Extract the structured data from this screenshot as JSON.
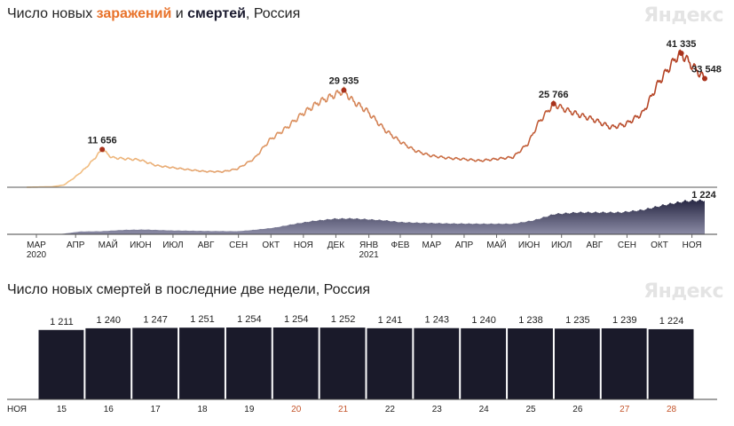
{
  "chart_data": [
    {
      "type": "line",
      "title_parts": {
        "prefix": "Число новых ",
        "infections": "заражений",
        "middle": " и ",
        "deaths": "смертей",
        "suffix": ", Россия"
      },
      "logo": "Яндекс",
      "months": [
        {
          "label": "МАР",
          "sub": "2020"
        },
        {
          "label": "АПР"
        },
        {
          "label": "МАЙ"
        },
        {
          "label": "ИЮН"
        },
        {
          "label": "ИЮЛ"
        },
        {
          "label": "АВГ"
        },
        {
          "label": "СЕН"
        },
        {
          "label": "ОКТ"
        },
        {
          "label": "НОЯ"
        },
        {
          "label": "ДЕК"
        },
        {
          "label": "ЯНВ",
          "sub": "2021"
        },
        {
          "label": "ФЕВ"
        },
        {
          "label": "МАР"
        },
        {
          "label": "АПР"
        },
        {
          "label": "МАЙ"
        },
        {
          "label": "ИЮН"
        },
        {
          "label": "ИЮЛ"
        },
        {
          "label": "АВГ"
        },
        {
          "label": "СЕН"
        },
        {
          "label": "ОКТ"
        },
        {
          "label": "НОЯ"
        }
      ],
      "series": [
        {
          "name": "заражений",
          "color_start": "#f7c98a",
          "color_end": "#b03a1e",
          "points": [
            [
              "2020-03-01",
              0
            ],
            [
              "2020-03-25",
              150
            ],
            [
              "2020-04-05",
              700
            ],
            [
              "2020-04-15",
              3000
            ],
            [
              "2020-04-25",
              5800
            ],
            [
              "2020-05-01",
              7900
            ],
            [
              "2020-05-11",
              11656
            ],
            [
              "2020-05-20",
              9200
            ],
            [
              "2020-06-01",
              8800
            ],
            [
              "2020-06-15",
              8500
            ],
            [
              "2020-07-01",
              6700
            ],
            [
              "2020-07-15",
              6100
            ],
            [
              "2020-08-01",
              5400
            ],
            [
              "2020-08-15",
              4900
            ],
            [
              "2020-09-01",
              4800
            ],
            [
              "2020-09-15",
              5700
            ],
            [
              "2020-10-01",
              8900
            ],
            [
              "2020-10-15",
              14500
            ],
            [
              "2020-11-01",
              18600
            ],
            [
              "2020-11-15",
              22700
            ],
            [
              "2020-12-01",
              26400
            ],
            [
              "2020-12-15",
              28500
            ],
            [
              "2020-12-24",
              29935
            ],
            [
              "2021-01-01",
              26800
            ],
            [
              "2021-01-15",
              23500
            ],
            [
              "2021-02-01",
              17600
            ],
            [
              "2021-02-15",
              14100
            ],
            [
              "2021-03-01",
              11300
            ],
            [
              "2021-03-15",
              9800
            ],
            [
              "2021-04-01",
              9000
            ],
            [
              "2021-04-15",
              8700
            ],
            [
              "2021-05-01",
              8200
            ],
            [
              "2021-05-15",
              8700
            ],
            [
              "2021-06-01",
              9300
            ],
            [
              "2021-06-15",
              13500
            ],
            [
              "2021-06-25",
              20000
            ],
            [
              "2021-07-09",
              25766
            ],
            [
              "2021-07-20",
              24000
            ],
            [
              "2021-08-01",
              22500
            ],
            [
              "2021-08-15",
              21000
            ],
            [
              "2021-09-01",
              18500
            ],
            [
              "2021-09-15",
              19500
            ],
            [
              "2021-10-01",
              23000
            ],
            [
              "2021-10-15",
              32000
            ],
            [
              "2021-11-01",
              40000
            ],
            [
              "2021-11-06",
              41335
            ],
            [
              "2021-11-15",
              38000
            ],
            [
              "2021-11-28",
              33548
            ]
          ],
          "annotations": [
            {
              "date": "2020-05-11",
              "value": 11656,
              "text": "11 656"
            },
            {
              "date": "2020-12-24",
              "value": 29935,
              "text": "29 935"
            },
            {
              "date": "2021-07-09",
              "value": 25766,
              "text": "25 766"
            },
            {
              "date": "2021-11-06",
              "value": 41335,
              "text": "41 335"
            },
            {
              "date": "2021-11-28",
              "value": 33548,
              "text": "33 548"
            }
          ]
        },
        {
          "name": "смертей",
          "color": "#2a2a48",
          "points": [
            [
              "2020-03-01",
              0
            ],
            [
              "2020-04-01",
              5
            ],
            [
              "2020-04-20",
              100
            ],
            [
              "2020-05-10",
              110
            ],
            [
              "2020-06-01",
              160
            ],
            [
              "2020-06-20",
              170
            ],
            [
              "2020-07-15",
              140
            ],
            [
              "2020-08-15",
              120
            ],
            [
              "2020-09-15",
              110
            ],
            [
              "2020-10-01",
              160
            ],
            [
              "2020-10-20",
              240
            ],
            [
              "2020-11-10",
              390
            ],
            [
              "2020-11-25",
              480
            ],
            [
              "2020-12-15",
              560
            ],
            [
              "2021-01-01",
              570
            ],
            [
              "2021-01-15",
              540
            ],
            [
              "2021-02-01",
              500
            ],
            [
              "2021-02-15",
              440
            ],
            [
              "2021-03-01",
              420
            ],
            [
              "2021-04-01",
              390
            ],
            [
              "2021-05-01",
              380
            ],
            [
              "2021-06-01",
              380
            ],
            [
              "2021-06-20",
              500
            ],
            [
              "2021-07-10",
              730
            ],
            [
              "2021-08-01",
              790
            ],
            [
              "2021-08-20",
              790
            ],
            [
              "2021-09-10",
              790
            ],
            [
              "2021-10-01",
              880
            ],
            [
              "2021-10-20",
              1050
            ],
            [
              "2021-11-10",
              1200
            ],
            [
              "2021-11-28",
              1224
            ]
          ],
          "annotations": [
            {
              "date": "2021-11-28",
              "value": 1224,
              "text": "1 224"
            }
          ]
        }
      ]
    },
    {
      "type": "bar",
      "title": "Число новых смертей в последние две недели, Россия",
      "logo": "Яндекс",
      "month_label": "НОЯ",
      "bar_color": "#1a1a2a",
      "weekend_color": "#c4542a",
      "categories": [
        "15",
        "16",
        "17",
        "18",
        "19",
        "20",
        "21",
        "22",
        "23",
        "24",
        "25",
        "26",
        "27",
        "28"
      ],
      "weekend": [
        false,
        false,
        false,
        false,
        false,
        true,
        true,
        false,
        false,
        false,
        false,
        false,
        true,
        true
      ],
      "values": [
        1211,
        1240,
        1247,
        1251,
        1254,
        1254,
        1252,
        1241,
        1243,
        1240,
        1238,
        1235,
        1239,
        1224
      ],
      "value_labels": [
        "1 211",
        "1 240",
        "1 247",
        "1 251",
        "1 254",
        "1 254",
        "1 252",
        "1 241",
        "1 243",
        "1 240",
        "1 238",
        "1 235",
        "1 239",
        "1 224"
      ]
    }
  ]
}
